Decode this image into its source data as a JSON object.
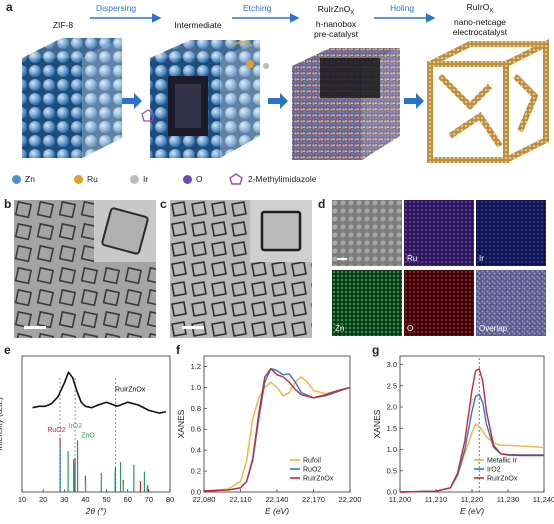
{
  "panel_a": {
    "label": "a",
    "steps": [
      {
        "title": "ZIF-8"
      },
      {
        "title": "Intermediate"
      },
      {
        "title": "RuIrZnOx h-nanobox pre-catalyst",
        "lines": [
          "RuIrZnO",
          "h-nanobox",
          "pre-catalyst"
        ]
      },
      {
        "title": "RuIrOx nano-netcage electrocatalyst",
        "lines": [
          "RuIrO",
          "nano-netcage",
          "electrocatalyst"
        ]
      }
    ],
    "arrows": [
      "Dispersing",
      "Etching",
      "Holing"
    ],
    "legend": [
      {
        "symbol": "Zn",
        "color": "#4f8fd0"
      },
      {
        "symbol": "Ru",
        "color": "#e0a030"
      },
      {
        "symbol": "Ir",
        "color": "#bcbcbc"
      },
      {
        "symbol": "O",
        "color": "#6a4fb0"
      },
      {
        "symbol": "2-Methylimidazole",
        "color": "#9b4fb0"
      }
    ]
  },
  "panel_b": {
    "label": "b"
  },
  "panel_c": {
    "label": "c"
  },
  "panel_d": {
    "label": "d",
    "maps": [
      "",
      "Ru",
      "Ir",
      "Zn",
      "O",
      "Overlap"
    ]
  },
  "panel_e": {
    "label": "e",
    "annotations": [
      "RuIrZnOx",
      "RuO2",
      "IrO2",
      "ZnO"
    ]
  },
  "panel_f": {
    "label": "f"
  },
  "panel_g": {
    "label": "g"
  },
  "chart_data": [
    {
      "type": "line",
      "id": "e",
      "xlabel": "2θ (°)",
      "ylabel": "Intensity (a.u.)",
      "xlim": [
        10,
        80
      ],
      "xticks": [
        10,
        20,
        30,
        40,
        50,
        60,
        70,
        80
      ],
      "series": [
        {
          "name": "RuIrZnOx",
          "color": "#111111",
          "x": [
            15,
            18,
            21,
            24,
            27,
            30,
            32,
            34,
            36,
            38,
            40,
            43,
            46,
            50,
            55,
            60,
            65,
            70,
            75,
            78
          ],
          "y": [
            0.62,
            0.63,
            0.63,
            0.65,
            0.7,
            0.8,
            0.88,
            0.84,
            0.74,
            0.66,
            0.63,
            0.62,
            0.64,
            0.66,
            0.63,
            0.66,
            0.64,
            0.6,
            0.58,
            0.59
          ]
        }
      ],
      "reference_lines": [
        {
          "name": "RuO2",
          "color": "#c8283c",
          "x": [
            28.0,
            35.1,
            40.0,
            54.2,
            57.9,
            66.0,
            69.5
          ],
          "h": [
            0.4,
            0.25,
            0.12,
            0.18,
            0.09,
            0.08,
            0.05
          ]
        },
        {
          "name": "IrO2",
          "color": "#3aa0d8",
          "x": [
            28.1,
            34.7,
            40.1,
            54.0,
            58.0,
            69.2
          ],
          "h": [
            0.34,
            0.2,
            0.08,
            0.15,
            0.06,
            0.04
          ]
        },
        {
          "name": "ZnO",
          "color": "#2a9a5a",
          "x": [
            31.8,
            34.4,
            36.3,
            47.5,
            56.6,
            62.9,
            67.9
          ],
          "h": [
            0.3,
            0.24,
            0.38,
            0.14,
            0.22,
            0.2,
            0.15
          ]
        }
      ]
    },
    {
      "type": "line",
      "id": "f",
      "xlabel": "E (eV)",
      "ylabel": "XANES",
      "xlim": [
        22080,
        22200
      ],
      "ylim": [
        0,
        1.3
      ],
      "xticks": [
        22080,
        22110,
        22140,
        22170,
        22200
      ],
      "yticks": [
        0,
        0.2,
        0.4,
        0.6,
        0.8,
        1.0,
        1.2
      ],
      "series": [
        {
          "name": "Rufoil",
          "color": "#f0b43c",
          "x": [
            22080,
            22100,
            22110,
            22115,
            22120,
            22125,
            22130,
            22135,
            22140,
            22145,
            22150,
            22155,
            22160,
            22165,
            22170,
            22180,
            22190,
            22200
          ],
          "y": [
            0.01,
            0.03,
            0.1,
            0.3,
            0.7,
            0.9,
            1.0,
            1.05,
            1.0,
            0.92,
            0.95,
            1.05,
            1.1,
            1.05,
            0.97,
            0.94,
            0.97,
            1.0
          ]
        },
        {
          "name": "RuO2",
          "color": "#3878c0",
          "x": [
            22080,
            22100,
            22110,
            22115,
            22120,
            22125,
            22130,
            22135,
            22140,
            22145,
            22150,
            22155,
            22160,
            22170,
            22180,
            22190,
            22200
          ],
          "y": [
            0.01,
            0.02,
            0.04,
            0.1,
            0.3,
            0.7,
            1.05,
            1.18,
            1.16,
            1.12,
            1.13,
            1.05,
            0.95,
            0.9,
            0.92,
            0.96,
            1.0
          ]
        },
        {
          "name": "RuIrZnOx",
          "color": "#c8283c",
          "x": [
            22080,
            22100,
            22110,
            22115,
            22120,
            22125,
            22130,
            22135,
            22140,
            22145,
            22150,
            22155,
            22160,
            22170,
            22180,
            22190,
            22200
          ],
          "y": [
            0.01,
            0.02,
            0.04,
            0.1,
            0.32,
            0.75,
            1.1,
            1.18,
            1.12,
            1.1,
            1.05,
            0.98,
            0.93,
            0.9,
            0.93,
            0.97,
            1.0
          ]
        }
      ],
      "legend_position": "bottom-right"
    },
    {
      "type": "line",
      "id": "g",
      "xlabel": "E (eV)",
      "ylabel": "XANES",
      "xlim": [
        11200,
        11240
      ],
      "ylim": [
        0,
        3.2
      ],
      "xticks": [
        11200,
        11210,
        11220,
        11230,
        11240
      ],
      "yticks": [
        0,
        0.5,
        1.0,
        1.5,
        2.0,
        2.5,
        3.0
      ],
      "reference_x": 11222,
      "series": [
        {
          "name": "Metallic Ir",
          "color": "#f0b43c",
          "x": [
            11200,
            11210,
            11214,
            11216,
            11218,
            11220,
            11221,
            11222,
            11224,
            11226,
            11228,
            11230,
            11234,
            11240
          ],
          "y": [
            0.0,
            0.02,
            0.1,
            0.4,
            0.9,
            1.4,
            1.6,
            1.55,
            1.3,
            1.15,
            1.1,
            1.1,
            1.08,
            1.05
          ]
        },
        {
          "name": "IrO2",
          "color": "#3878c0",
          "x": [
            11200,
            11210,
            11214,
            11216,
            11218,
            11220,
            11221,
            11222,
            11223,
            11224,
            11226,
            11228,
            11230,
            11234,
            11240
          ],
          "y": [
            0.0,
            0.02,
            0.1,
            0.4,
            1.0,
            1.9,
            2.25,
            2.3,
            2.1,
            1.6,
            1.05,
            0.9,
            0.88,
            0.87,
            0.87
          ]
        },
        {
          "name": "RuIrZnOx",
          "color": "#c8283c",
          "x": [
            11200,
            11210,
            11214,
            11216,
            11218,
            11220,
            11221,
            11222,
            11223,
            11224,
            11226,
            11228,
            11230,
            11234,
            11240
          ],
          "y": [
            0.0,
            0.02,
            0.1,
            0.45,
            1.2,
            2.4,
            2.85,
            2.9,
            2.6,
            1.9,
            1.1,
            0.9,
            0.87,
            0.86,
            0.86
          ]
        }
      ],
      "legend_position": "bottom-right"
    }
  ]
}
